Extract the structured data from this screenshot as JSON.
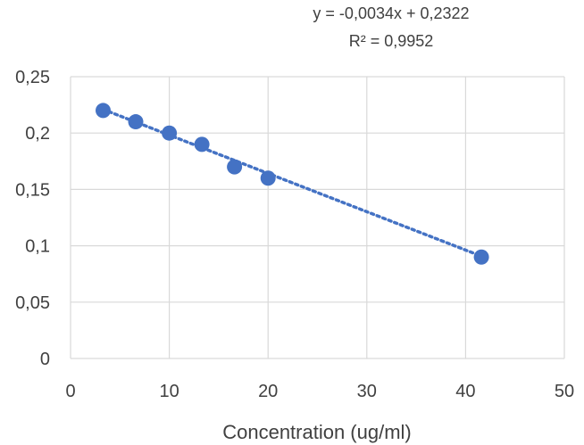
{
  "chart_data": {
    "type": "scatter",
    "title": "",
    "xlabel": "Concentration (ug/ml)",
    "ylabel": "",
    "xlim": [
      0,
      50
    ],
    "ylim": [
      0,
      0.25
    ],
    "x_ticks": [
      0,
      10,
      20,
      30,
      40,
      50
    ],
    "y_ticks": [
      0,
      0.05,
      0.1,
      0.15,
      0.2,
      0.25
    ],
    "x_tick_labels": [
      "0",
      "10",
      "20",
      "30",
      "40",
      "50"
    ],
    "y_tick_labels": [
      "0",
      "0,05",
      "0,1",
      "0,15",
      "0,2",
      "0,25"
    ],
    "grid": true,
    "series": [
      {
        "x": [
          3.3,
          6.6,
          10,
          13.3,
          16.6,
          20,
          41.6
        ],
        "y": [
          0.22,
          0.21,
          0.2,
          0.19,
          0.17,
          0.16,
          0.09
        ],
        "color": "#4472c4"
      }
    ],
    "trendline": {
      "type": "linear",
      "slope": -0.0034,
      "intercept": 0.2322,
      "x_range": [
        3.3,
        41.6
      ],
      "equation": "y = -0,0034x + 0,2322",
      "r_squared": "R² = 0,9952",
      "color": "#4472c4"
    }
  }
}
